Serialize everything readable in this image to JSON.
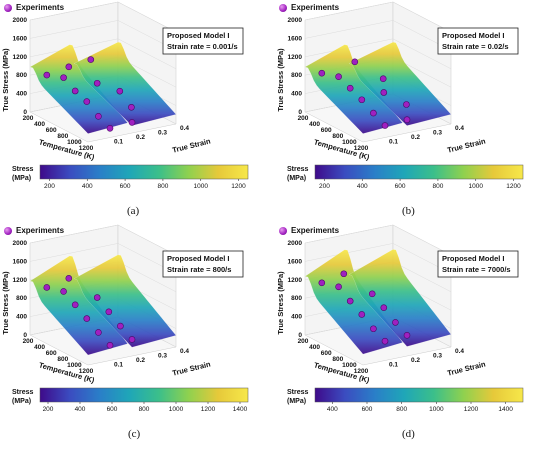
{
  "legend_label": "Experiments",
  "model_label": "Proposed Model I",
  "axes": {
    "z_label": "True Stress (MPa)",
    "x_label": "Temperature (K)",
    "y_label": "True Strain",
    "z_ticks": [
      "0",
      "400",
      "800",
      "1200",
      "1600",
      "2000"
    ],
    "x_ticks": [
      "200",
      "400",
      "600",
      "800",
      "1000",
      "1200"
    ],
    "y_ticks": [
      "0.1",
      "0.2",
      "0.3",
      "0.4"
    ]
  },
  "colorbar_label_1": "Stress",
  "colorbar_label_2": "(MPa)",
  "colors": {
    "marker": "#a020c0",
    "colormap": [
      "#3e0a8a",
      "#3b4cc0",
      "#2a7ec8",
      "#1fa6b8",
      "#3bbf8a",
      "#8fd14f",
      "#e6c93a",
      "#f7e84a"
    ]
  },
  "panels": [
    {
      "caption": "(a)",
      "strain_rate": "Strain rate = 0.001/s",
      "colorbar_ticks": [
        "200",
        "400",
        "600",
        "800",
        "1000",
        "1200"
      ]
    },
    {
      "caption": "(b)",
      "strain_rate": "Strain rate = 0.02/s",
      "colorbar_ticks": [
        "200",
        "400",
        "600",
        "800",
        "1000",
        "1200"
      ]
    },
    {
      "caption": "(c)",
      "strain_rate": "Strain rate = 800/s",
      "colorbar_ticks": [
        "200",
        "400",
        "600",
        "800",
        "1000",
        "1200",
        "1400"
      ]
    },
    {
      "caption": "(d)",
      "strain_rate": "Strain rate = 7000/s",
      "colorbar_ticks": [
        "400",
        "600",
        "800",
        "1000",
        "1200",
        "1400"
      ]
    }
  ],
  "chart_data": [
    {
      "type": "surface3d",
      "strain_rate": "0.001/s",
      "zlim": [
        0,
        2000
      ],
      "colorbar_range": [
        150,
        1250
      ],
      "points": [
        [
          300,
          0.05,
          820
        ],
        [
          300,
          0.15,
          900
        ],
        [
          300,
          0.25,
          960
        ],
        [
          400,
          0.1,
          780
        ],
        [
          600,
          0.1,
          620
        ],
        [
          600,
          0.2,
          690
        ],
        [
          800,
          0.1,
          520
        ],
        [
          800,
          0.25,
          600
        ],
        [
          1000,
          0.1,
          330
        ],
        [
          1000,
          0.25,
          380
        ],
        [
          1200,
          0.1,
          200
        ],
        [
          1200,
          0.2,
          230
        ]
      ]
    },
    {
      "type": "surface3d",
      "strain_rate": "0.02/s",
      "zlim": [
        0,
        2000
      ],
      "colorbar_range": [
        150,
        1250
      ],
      "points": [
        [
          300,
          0.05,
          860
        ],
        [
          300,
          0.2,
          960
        ],
        [
          400,
          0.1,
          800
        ],
        [
          600,
          0.1,
          680
        ],
        [
          600,
          0.25,
          740
        ],
        [
          800,
          0.1,
          560
        ],
        [
          800,
          0.2,
          620
        ],
        [
          1000,
          0.1,
          400
        ],
        [
          1000,
          0.25,
          440
        ],
        [
          1200,
          0.1,
          260
        ],
        [
          1200,
          0.2,
          290
        ]
      ]
    },
    {
      "type": "surface3d",
      "strain_rate": "800/s",
      "zlim": [
        0,
        2000
      ],
      "colorbar_range": [
        150,
        1450
      ],
      "points": [
        [
          300,
          0.05,
          1050
        ],
        [
          300,
          0.15,
          1150
        ],
        [
          400,
          0.1,
          980
        ],
        [
          600,
          0.1,
          820
        ],
        [
          600,
          0.2,
          880
        ],
        [
          800,
          0.1,
          650
        ],
        [
          800,
          0.2,
          700
        ],
        [
          1000,
          0.1,
          480
        ],
        [
          1000,
          0.2,
          520
        ],
        [
          1200,
          0.1,
          330
        ],
        [
          1200,
          0.2,
          360
        ]
      ]
    },
    {
      "type": "surface3d",
      "strain_rate": "7000/s",
      "zlim": [
        0,
        2000
      ],
      "colorbar_range": [
        300,
        1500
      ],
      "points": [
        [
          300,
          0.05,
          1150
        ],
        [
          300,
          0.15,
          1250
        ],
        [
          400,
          0.1,
          1080
        ],
        [
          600,
          0.1,
          900
        ],
        [
          600,
          0.2,
          960
        ],
        [
          800,
          0.1,
          740
        ],
        [
          800,
          0.2,
          790
        ],
        [
          1000,
          0.1,
          560
        ],
        [
          1000,
          0.2,
          600
        ],
        [
          1200,
          0.1,
          420
        ],
        [
          1200,
          0.2,
          450
        ]
      ]
    }
  ]
}
